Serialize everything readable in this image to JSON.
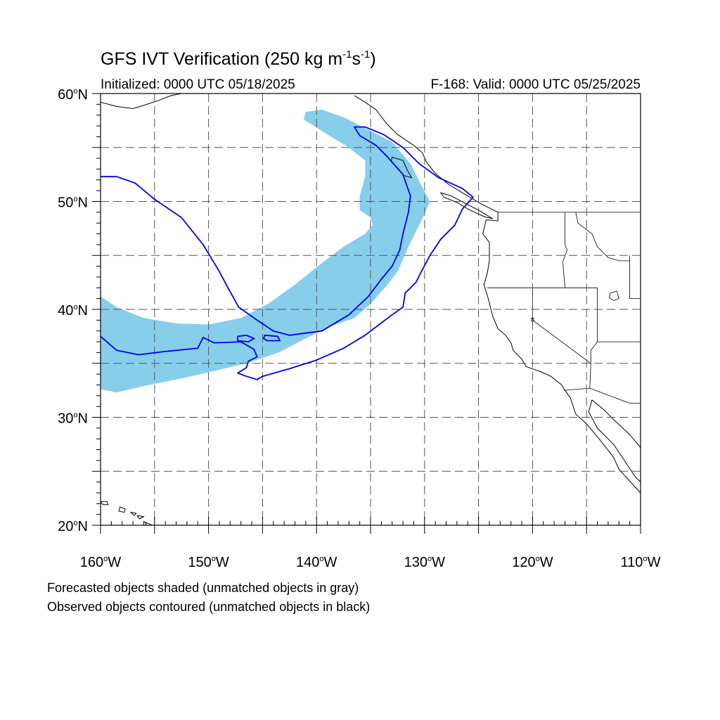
{
  "title": {
    "text": "GFS IVT Verification (250 kg m",
    "exp1": "-1",
    "mid": "s",
    "exp2": "-1",
    "tail": ")"
  },
  "subtitle_left": "Initialized: 0000 UTC 05/18/2025",
  "subtitle_right": "F-168: Valid: 0000 UTC 05/25/2025",
  "captions": [
    "Forecasted objects shaded (unmatched objects in gray)",
    "Observed objects contoured (unmatched objects in black)"
  ],
  "colors": {
    "forecast_fill": "#87ceeb",
    "observed_contour": "#0000ee",
    "coastline": "#000000",
    "grid": "#555555"
  },
  "chart_data": {
    "type": "map",
    "projection": "cylindrical-equidistant",
    "lon_range": [
      -160,
      -110
    ],
    "lat_range": [
      20,
      60
    ],
    "grid": true,
    "lat_ticks": [
      {
        "value": 20,
        "label": "20",
        "hemi": "N"
      },
      {
        "value": 30,
        "label": "30",
        "hemi": "N"
      },
      {
        "value": 40,
        "label": "40",
        "hemi": "N"
      },
      {
        "value": 50,
        "label": "50",
        "hemi": "N"
      },
      {
        "value": 60,
        "label": "60",
        "hemi": "N"
      }
    ],
    "lon_ticks": [
      {
        "value": -160,
        "label": "160",
        "hemi": "W"
      },
      {
        "value": -150,
        "label": "150",
        "hemi": "W"
      },
      {
        "value": -140,
        "label": "140",
        "hemi": "W"
      },
      {
        "value": -130,
        "label": "130",
        "hemi": "W"
      },
      {
        "value": -120,
        "label": "120",
        "hemi": "W"
      },
      {
        "value": -110,
        "label": "110",
        "hemi": "W"
      }
    ],
    "forecast_object": [
      [
        -160,
        41.2
      ],
      [
        -158.5,
        40.2
      ],
      [
        -156,
        39.2
      ],
      [
        -153,
        38.7
      ],
      [
        -150,
        38.6
      ],
      [
        -147,
        39.2
      ],
      [
        -144.5,
        40.5
      ],
      [
        -142,
        42.3
      ],
      [
        -139.5,
        44.3
      ],
      [
        -137.5,
        45.8
      ],
      [
        -135.5,
        47
      ],
      [
        -134.8,
        47.8
      ],
      [
        -135,
        48.5
      ],
      [
        -136,
        49.2
      ],
      [
        -136,
        50.5
      ],
      [
        -135.5,
        52.3
      ],
      [
        -135.5,
        53.8
      ],
      [
        -137,
        55
      ],
      [
        -139,
        56.2
      ],
      [
        -141.2,
        57.6
      ],
      [
        -141,
        58.3
      ],
      [
        -139.5,
        58.5
      ],
      [
        -137.5,
        57.8
      ],
      [
        -135.5,
        56.8
      ],
      [
        -133,
        55.5
      ],
      [
        -131.3,
        53.5
      ],
      [
        -130.3,
        51.5
      ],
      [
        -129.5,
        50
      ],
      [
        -130.3,
        48.2
      ],
      [
        -131.3,
        46.2
      ],
      [
        -132.5,
        43.5
      ],
      [
        -133.5,
        42.2
      ],
      [
        -135,
        40.5
      ],
      [
        -136.5,
        39.2
      ],
      [
        -138.5,
        38.5
      ],
      [
        -141,
        37.3
      ],
      [
        -143.5,
        36
      ],
      [
        -146.5,
        35
      ],
      [
        -149.5,
        34.3
      ],
      [
        -152.5,
        33.6
      ],
      [
        -156,
        32.9
      ],
      [
        -158.5,
        32.3
      ],
      [
        -160,
        32.6
      ]
    ],
    "observed_object": [
      [
        -160,
        52.3
      ],
      [
        -158.5,
        52.3
      ],
      [
        -156.8,
        51.7
      ],
      [
        -155,
        50.2
      ],
      [
        -152.5,
        48.5
      ],
      [
        -150.5,
        46
      ],
      [
        -149,
        43.5
      ],
      [
        -148.2,
        42
      ],
      [
        -147.2,
        40.2
      ],
      [
        -145.5,
        39
      ],
      [
        -144,
        38
      ],
      [
        -142.5,
        37.6
      ],
      [
        -139.5,
        38
      ],
      [
        -137,
        39.5
      ],
      [
        -135.2,
        41.2
      ],
      [
        -134,
        42.8
      ],
      [
        -133,
        44
      ],
      [
        -132.3,
        45.5
      ],
      [
        -132,
        47
      ],
      [
        -131.5,
        49
      ],
      [
        -131.3,
        50.5
      ],
      [
        -132,
        52.5
      ],
      [
        -133.5,
        54.2
      ],
      [
        -134.5,
        55.2
      ],
      [
        -136,
        56.1
      ],
      [
        -136.5,
        56.9
      ],
      [
        -135.5,
        56.9
      ],
      [
        -133.8,
        56.2
      ],
      [
        -132,
        55
      ],
      [
        -130.5,
        53.5
      ],
      [
        -128.7,
        52.2
      ],
      [
        -126.5,
        51.2
      ],
      [
        -125.5,
        50.4
      ],
      [
        -126.5,
        49.3
      ],
      [
        -127.2,
        47.8
      ],
      [
        -128.5,
        46.5
      ],
      [
        -129.5,
        45
      ],
      [
        -130.3,
        43.5
      ],
      [
        -130.8,
        42.5
      ],
      [
        -131.8,
        41.5
      ],
      [
        -132,
        40.2
      ],
      [
        -133,
        39.5
      ],
      [
        -134.2,
        38.6
      ],
      [
        -135.5,
        37.6
      ],
      [
        -137.5,
        36.4
      ],
      [
        -140,
        35.3
      ],
      [
        -142.5,
        34.5
      ],
      [
        -145,
        33.8
      ],
      [
        -145.5,
        33.5
      ],
      [
        -146.5,
        33.8
      ],
      [
        -147.3,
        34.1
      ],
      [
        -146.5,
        34.6
      ],
      [
        -146.3,
        35.2
      ],
      [
        -145.5,
        35.6
      ],
      [
        -145.8,
        36.3
      ],
      [
        -147,
        37
      ],
      [
        -149.5,
        36.9
      ],
      [
        -150.5,
        37.4
      ],
      [
        -151,
        36.4
      ],
      [
        -154,
        36.1
      ],
      [
        -156.5,
        35.8
      ],
      [
        -158.5,
        36.2
      ],
      [
        -160,
        37.5
      ]
    ],
    "observed_islands": [
      [
        [
          -147.3,
          37.5
        ],
        [
          -146.5,
          37.6
        ],
        [
          -145.8,
          37.3
        ],
        [
          -146.3,
          37.0
        ],
        [
          -147.3,
          37.1
        ]
      ],
      [
        [
          -144.8,
          37.6
        ],
        [
          -143.6,
          37.5
        ],
        [
          -143.4,
          37.1
        ],
        [
          -144.6,
          37.1
        ],
        [
          -144.9,
          37.3
        ]
      ]
    ],
    "coastline": [
      [
        -136.5,
        59.8
      ],
      [
        -135.5,
        59.2
      ],
      [
        -134.5,
        58.5
      ],
      [
        -133.5,
        57.2
      ],
      [
        -132.5,
        56.2
      ],
      [
        -131,
        55.2
      ],
      [
        -130.2,
        54.5
      ],
      [
        -129.8,
        53.6
      ],
      [
        -129,
        52.6
      ],
      [
        -127.8,
        51.6
      ],
      [
        -126.5,
        50.8
      ],
      [
        -124.8,
        49.8
      ],
      [
        -123.2,
        49
      ],
      [
        -123.2,
        48.2
      ],
      [
        -124.3,
        48.3
      ],
      [
        -124.6,
        47
      ],
      [
        -124,
        46.2
      ],
      [
        -124,
        44.5
      ],
      [
        -124.2,
        43.3
      ],
      [
        -124.5,
        42.3
      ],
      [
        -124.1,
        41
      ],
      [
        -123.7,
        39.4
      ],
      [
        -123.2,
        38.2
      ],
      [
        -122.5,
        37.6
      ],
      [
        -122,
        36.9
      ],
      [
        -121.8,
        36.2
      ],
      [
        -121,
        35.4
      ],
      [
        -120.6,
        34.7
      ],
      [
        -119.2,
        34.2
      ],
      [
        -118.3,
        33.8
      ],
      [
        -117.3,
        33
      ],
      [
        -117,
        32.5
      ],
      [
        -116.5,
        31.8
      ],
      [
        -116,
        30.3
      ],
      [
        -115,
        29.4
      ],
      [
        -114,
        28.2
      ],
      [
        -113.2,
        27.2
      ],
      [
        -112.5,
        26.3
      ],
      [
        -112,
        25.2
      ],
      [
        -111.2,
        24.3
      ],
      [
        -110,
        23
      ]
    ],
    "gulf_coast": [
      [
        -110,
        27.2
      ],
      [
        -111,
        28.4
      ],
      [
        -112.5,
        29.8
      ],
      [
        -113.5,
        30.8
      ],
      [
        -114.5,
        31.6
      ],
      [
        -114.8,
        30.5
      ],
      [
        -114,
        29
      ],
      [
        -112.5,
        27.5
      ],
      [
        -111.5,
        26
      ],
      [
        -110.5,
        24.5
      ],
      [
        -110,
        24
      ]
    ],
    "vancouver_island": [
      [
        -128.5,
        50.8
      ],
      [
        -127.5,
        50.5
      ],
      [
        -126.2,
        49.8
      ],
      [
        -125,
        49.2
      ],
      [
        -123.7,
        48.4
      ],
      [
        -124.5,
        48.6
      ],
      [
        -125.8,
        49.2
      ],
      [
        -127,
        49.9
      ],
      [
        -128.2,
        50.4
      ]
    ],
    "haida_gwaii": [
      [
        -133,
        54.1
      ],
      [
        -132,
        53.8
      ],
      [
        -131.6,
        52.9
      ],
      [
        -131.2,
        52.2
      ],
      [
        -131.9,
        52.4
      ],
      [
        -132.5,
        53.1
      ],
      [
        -133.1,
        53.7
      ]
    ],
    "alaska_coast": [
      [
        -160,
        59.2
      ],
      [
        -158.5,
        58.8
      ],
      [
        -157,
        58.6
      ],
      [
        -156,
        58.9
      ],
      [
        -154.5,
        59.4
      ],
      [
        -153.5,
        59.8
      ],
      [
        -152.5,
        60
      ]
    ],
    "borders": [
      [
        [
          -123.2,
          49
        ],
        [
          -110,
          49
        ]
      ],
      [
        [
          -124.2,
          42
        ],
        [
          -114,
          42
        ]
      ],
      [
        [
          -117,
          46
        ],
        [
          -117,
          49
        ]
      ],
      [
        [
          -117,
          46
        ],
        [
          -116.8,
          45.5
        ],
        [
          -117.2,
          44.4
        ],
        [
          -117,
          42
        ]
      ],
      [
        [
          -120,
          42
        ],
        [
          -120,
          39
        ],
        [
          -114.6,
          35
        ]
      ],
      [
        [
          -114,
          42
        ],
        [
          -114,
          37
        ],
        [
          -114.6,
          36.2
        ],
        [
          -114.6,
          35
        ]
      ],
      [
        [
          -114.6,
          35
        ],
        [
          -114.7,
          32.7
        ]
      ],
      [
        [
          -117.1,
          32.5
        ],
        [
          -114.7,
          32.7
        ],
        [
          -111,
          31.3
        ],
        [
          -110,
          31.3
        ]
      ],
      [
        [
          -111,
          45
        ],
        [
          -111,
          41
        ],
        [
          -110,
          41
        ]
      ],
      [
        [
          -114,
          37
        ],
        [
          -110,
          37
        ]
      ],
      [
        [
          -116,
          49
        ],
        [
          -115.8,
          48
        ],
        [
          -114.5,
          47
        ],
        [
          -114,
          45.8
        ],
        [
          -113,
          44.8
        ],
        [
          -112,
          44.5
        ],
        [
          -111,
          44.5
        ]
      ]
    ],
    "lakes": [
      [
        [
          -112.8,
          41.5
        ],
        [
          -112.2,
          41.7
        ],
        [
          -112,
          41
        ],
        [
          -112.5,
          40.8
        ],
        [
          -112.9,
          41.1
        ]
      ],
      [
        [
          -120.1,
          39.2
        ],
        [
          -119.9,
          39.2
        ],
        [
          -119.9,
          38.9
        ],
        [
          -120.1,
          38.9
        ]
      ]
    ],
    "hawaii": [
      [
        [
          -160,
          22.2
        ],
        [
          -159.4,
          22.2
        ],
        [
          -159.3,
          21.9
        ],
        [
          -159.8,
          21.9
        ]
      ],
      [
        [
          -158.2,
          21.7
        ],
        [
          -157.7,
          21.5
        ],
        [
          -157.8,
          21.2
        ],
        [
          -158.3,
          21.3
        ]
      ],
      [
        [
          -157.2,
          21.2
        ],
        [
          -156.7,
          21.1
        ],
        [
          -156.9,
          20.9
        ]
      ],
      [
        [
          -156.6,
          20.9
        ],
        [
          -156,
          20.8
        ],
        [
          -156.4,
          20.6
        ]
      ],
      [
        [
          -155.9,
          20.3
        ],
        [
          -155,
          19.9
        ],
        [
          -155.2,
          19.6
        ],
        [
          -155.6,
          19.8
        ]
      ]
    ]
  }
}
